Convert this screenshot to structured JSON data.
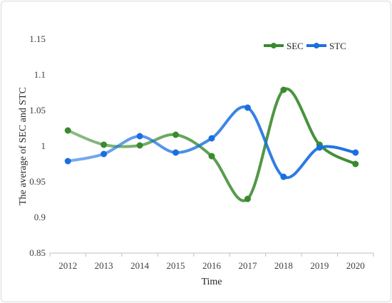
{
  "chart_data": {
    "type": "line",
    "title": "",
    "xlabel": "Time",
    "ylabel": "The average of SEC and STC",
    "ylim": [
      0.85,
      1.15
    ],
    "yticks": [
      "0.85",
      "0.9",
      "0.95",
      "1",
      "1.05",
      "1.1",
      "1.15"
    ],
    "categories": [
      "2012",
      "2013",
      "2014",
      "2015",
      "2016",
      "2017",
      "2018",
      "2019",
      "2020"
    ],
    "grid": false,
    "legend_position": "top-right",
    "series": [
      {
        "name": "SEC",
        "color": "#3a8a2e",
        "values": [
          1.022,
          1.002,
          1.001,
          1.016,
          0.986,
          0.926,
          1.079,
          1.002,
          0.975
        ]
      },
      {
        "name": "STC",
        "color": "#1a6fe0",
        "values": [
          0.979,
          0.989,
          1.014,
          0.991,
          1.011,
          1.054,
          0.957,
          0.998,
          0.991
        ]
      }
    ]
  }
}
